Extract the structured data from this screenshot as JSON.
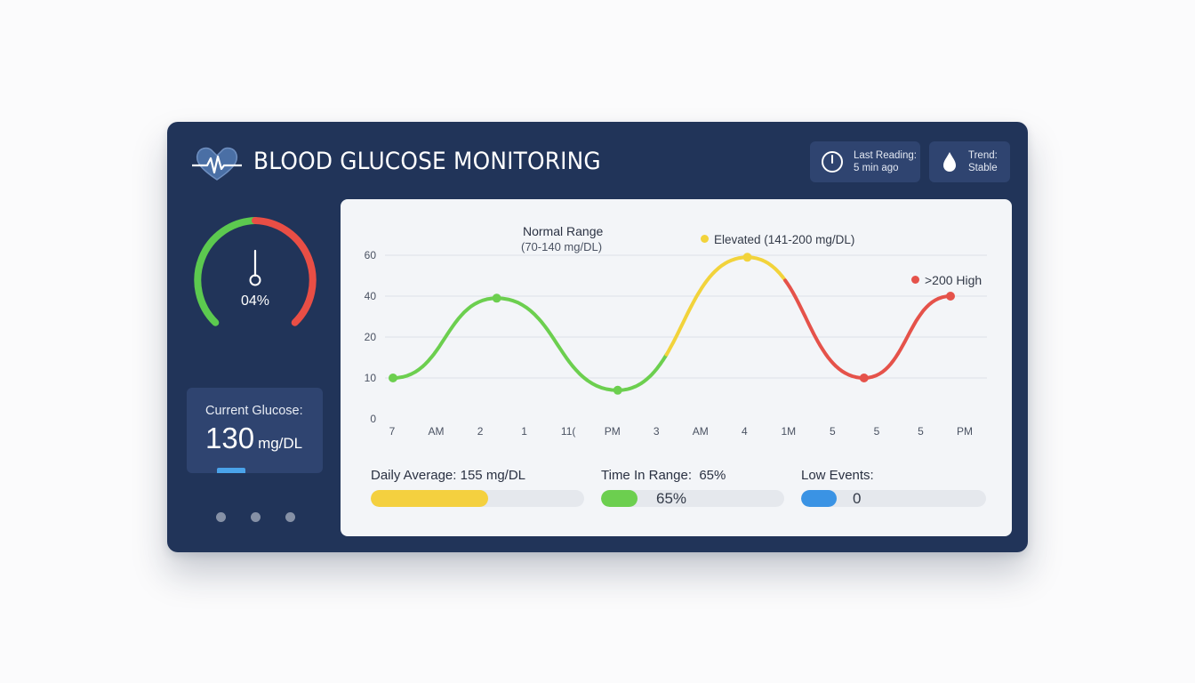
{
  "header": {
    "title": "BLOOD GLUCOSE MONITORING",
    "last_reading_label": "Last Reading:",
    "last_reading_value": "5 min ago",
    "trend_label": "Trend:",
    "trend_value": "Stable",
    "icons": [
      "heart-pulse-icon",
      "clock-icon",
      "droplet-icon"
    ]
  },
  "gauge": {
    "value_text": "04%",
    "colors": {
      "low": "#5cc94f",
      "high": "#e94e45"
    }
  },
  "current": {
    "label": "Current Glucose:",
    "value": "130",
    "unit": "mg/DL"
  },
  "pager": {
    "dots": 3
  },
  "chart_data": {
    "type": "line",
    "y_ticks": [
      "60",
      "40",
      "20",
      "10",
      "0"
    ],
    "x_labels": [
      "7",
      "AM",
      "2",
      "1",
      "11(",
      "PM",
      "3",
      "AM",
      "4",
      "1M",
      "5",
      "5",
      "5",
      "PM"
    ],
    "series": [
      {
        "points": [
          {
            "x": 0.0,
            "y": 10,
            "color": "#6ccf4f"
          },
          {
            "x": 1.2,
            "y": 39,
            "color": "#6ccf4f"
          },
          {
            "x": 2.6,
            "y": 7,
            "color": "#6ccf4f"
          },
          {
            "x": 4.1,
            "y": 59,
            "color": "#f2d33b"
          },
          {
            "x": 5.45,
            "y": 10,
            "color": "#e5524a"
          },
          {
            "x": 6.45,
            "y": 40,
            "color": "#e5524a"
          }
        ]
      }
    ],
    "annotations": {
      "normal_range_title": "Normal Range",
      "normal_range_sub": "(70-140 mg/DL)",
      "elevated": "Elevated (141-200 mg/DL)",
      "high": ">200 High"
    },
    "colors": {
      "normal": "#6ccf4f",
      "elevated": "#f2d33b",
      "high": "#e5524a"
    }
  },
  "stats": {
    "daily_average_label": "Daily Average:",
    "daily_average_value": "155 mg/DL",
    "daily_average_fill": 0.55,
    "time_in_range_label": "Time In Range:",
    "time_in_range_value": "65%",
    "time_in_range_fill": 0.2,
    "time_in_range_bar_text": "65%",
    "low_events_label": "Low Events:",
    "low_events_fill": 0.19,
    "low_events_bar_text": "0",
    "colors": {
      "average": "#f4d03f",
      "range": "#6ccf4f",
      "low": "#3a93e4"
    }
  }
}
